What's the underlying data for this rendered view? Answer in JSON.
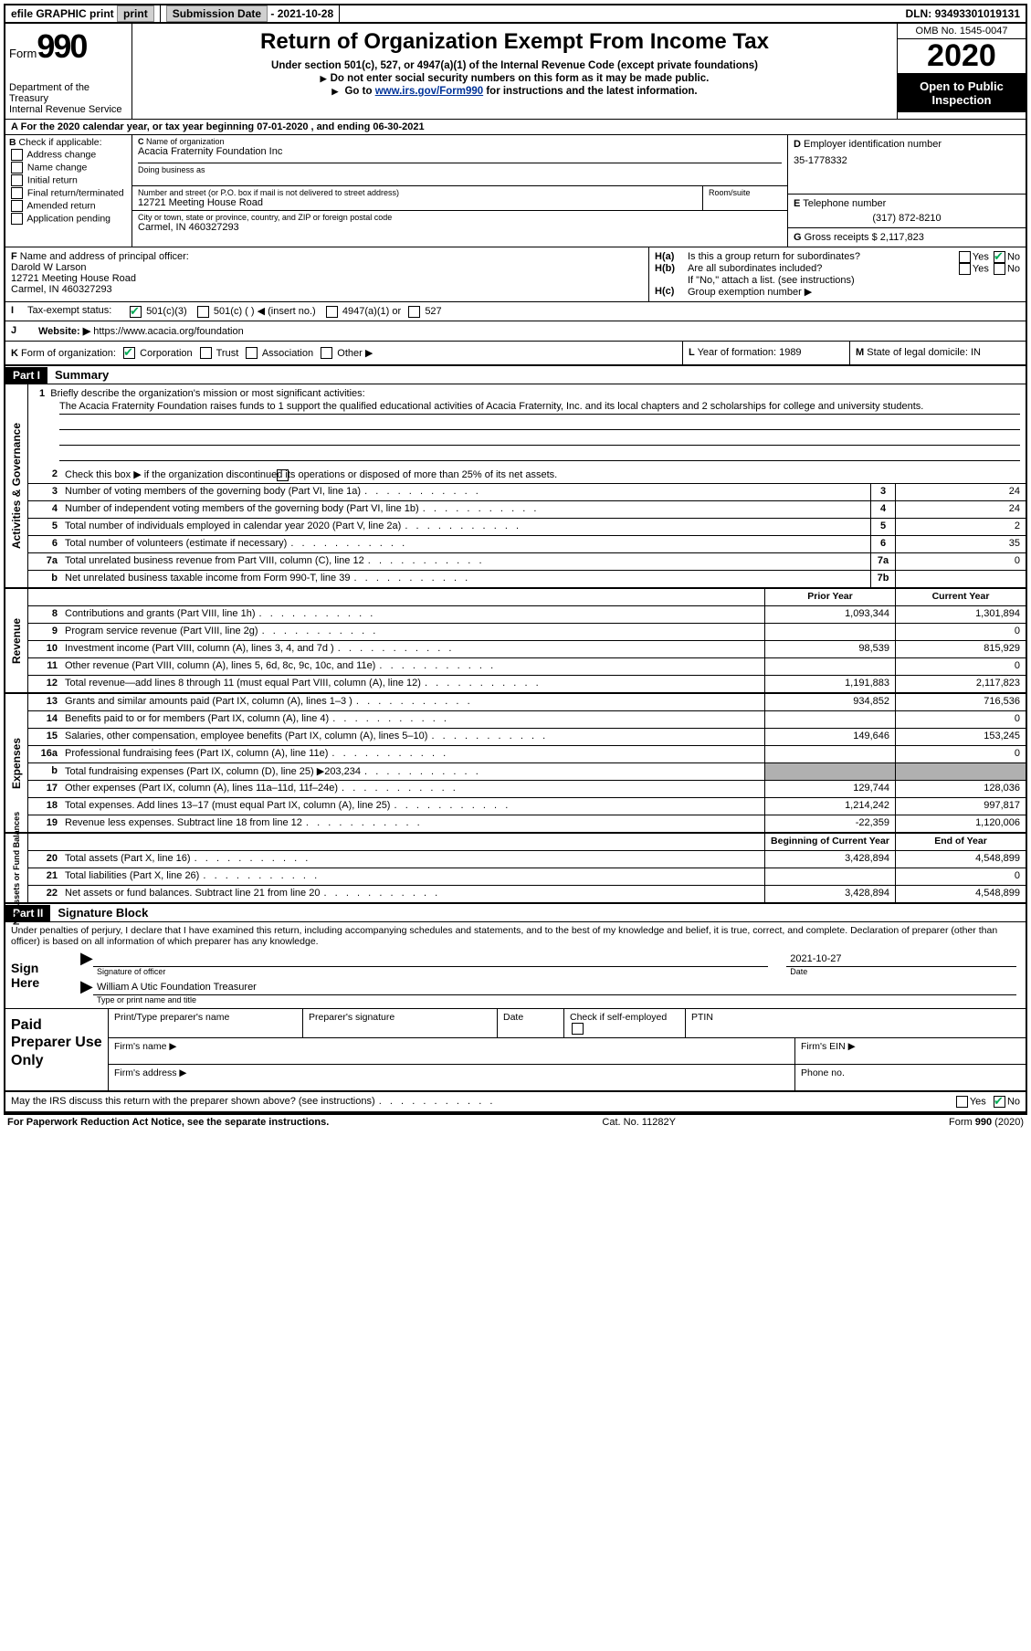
{
  "topbar": {
    "efile": "efile GRAPHIC print",
    "submission_label": "Submission Date",
    "submission_date": "- 2021-10-28",
    "dln_label": "DLN:",
    "dln": "93493301019131"
  },
  "header": {
    "form_word": "Form",
    "form_num": "990",
    "dept1": "Department of the Treasury",
    "dept2": "Internal Revenue Service",
    "title": "Return of Organization Exempt From Income Tax",
    "subtitle": "Under section 501(c), 527, or 4947(a)(1) of the Internal Revenue Code (except private foundations)",
    "note1": "Do not enter social security numbers on this form as it may be made public.",
    "note2_pre": "Go to ",
    "note2_link": "www.irs.gov/Form990",
    "note2_post": " for instructions and the latest information.",
    "omb": "OMB No. 1545-0047",
    "year": "2020",
    "open": "Open to Public Inspection"
  },
  "lineA": "For the 2020 calendar year, or tax year beginning 07-01-2020    , and ending 06-30-2021",
  "boxB": {
    "label": "Check if applicable:",
    "opts": [
      "Address change",
      "Name change",
      "Initial return",
      "Final return/terminated",
      "Amended return",
      "Application pending"
    ]
  },
  "boxC": {
    "label_name": "Name of organization",
    "name": "Acacia Fraternity Foundation Inc",
    "dba_label": "Doing business as",
    "addr_label": "Number and street (or P.O. box if mail is not delivered to street address)",
    "room_label": "Room/suite",
    "addr": "12721 Meeting House Road",
    "city_label": "City or town, state or province, country, and ZIP or foreign postal code",
    "city": "Carmel, IN  460327293"
  },
  "boxD": {
    "label": "Employer identification number",
    "ein": "35-1778332"
  },
  "boxE": {
    "label": "Telephone number",
    "phone": "(317) 872-8210"
  },
  "boxG": {
    "label": "Gross receipts $",
    "val": "2,117,823"
  },
  "boxF": {
    "label": "Name and address of principal officer:",
    "name": "Darold W Larson",
    "addr1": "12721 Meeting House Road",
    "addr2": "Carmel, IN  460327293"
  },
  "boxH": {
    "a_label": "Is this a group return for subordinates?",
    "b_label": "Are all subordinates included?",
    "b_note": "If \"No,\" attach a list. (see instructions)",
    "c_label": "Group exemption number ▶",
    "yes": "Yes",
    "no": "No"
  },
  "rowI": {
    "label": "Tax-exempt status:",
    "opt1": "501(c)(3)",
    "opt2": "501(c) (  ) ◀ (insert no.)",
    "opt3": "4947(a)(1) or",
    "opt4": "527"
  },
  "rowJ": {
    "label": "Website: ▶",
    "url": "https://www.acacia.org/foundation"
  },
  "rowK": {
    "label": "Form of organization:",
    "opts": [
      "Corporation",
      "Trust",
      "Association",
      "Other ▶"
    ],
    "L_label": "Year of formation:",
    "L_val": "1989",
    "M_label": "State of legal domicile:",
    "M_val": "IN"
  },
  "part1": {
    "tag": "Part I",
    "title": "Summary",
    "q1_label": "Briefly describe the organization's mission or most significant activities:",
    "mission": "The Acacia Fraternity Foundation raises funds to 1 support the qualified educational activities of Acacia Fraternity, Inc. and its local chapters and 2 scholarships for college and university students.",
    "q2": "Check this box ▶       if the organization discontinued its operations or disposed of more than 25% of its net assets.",
    "lines_gov": [
      {
        "n": "3",
        "t": "Number of voting members of the governing body (Part VI, line 1a)",
        "box": "3",
        "v": "24"
      },
      {
        "n": "4",
        "t": "Number of independent voting members of the governing body (Part VI, line 1b)",
        "box": "4",
        "v": "24"
      },
      {
        "n": "5",
        "t": "Total number of individuals employed in calendar year 2020 (Part V, line 2a)",
        "box": "5",
        "v": "2"
      },
      {
        "n": "6",
        "t": "Total number of volunteers (estimate if necessary)",
        "box": "6",
        "v": "35"
      },
      {
        "n": "7a",
        "t": "Total unrelated business revenue from Part VIII, column (C), line 12",
        "box": "7a",
        "v": "0"
      },
      {
        "n": "b",
        "t": "Net unrelated business taxable income from Form 990-T, line 39",
        "box": "7b",
        "v": ""
      }
    ],
    "hdr_prior": "Prior Year",
    "hdr_curr": "Current Year",
    "lines_rev": [
      {
        "n": "8",
        "t": "Contributions and grants (Part VIII, line 1h)",
        "p": "1,093,344",
        "c": "1,301,894"
      },
      {
        "n": "9",
        "t": "Program service revenue (Part VIII, line 2g)",
        "p": "",
        "c": "0"
      },
      {
        "n": "10",
        "t": "Investment income (Part VIII, column (A), lines 3, 4, and 7d )",
        "p": "98,539",
        "c": "815,929"
      },
      {
        "n": "11",
        "t": "Other revenue (Part VIII, column (A), lines 5, 6d, 8c, 9c, 10c, and 11e)",
        "p": "",
        "c": "0"
      },
      {
        "n": "12",
        "t": "Total revenue—add lines 8 through 11 (must equal Part VIII, column (A), line 12)",
        "p": "1,191,883",
        "c": "2,117,823"
      }
    ],
    "lines_exp": [
      {
        "n": "13",
        "t": "Grants and similar amounts paid (Part IX, column (A), lines 1–3 )",
        "p": "934,852",
        "c": "716,536"
      },
      {
        "n": "14",
        "t": "Benefits paid to or for members (Part IX, column (A), line 4)",
        "p": "",
        "c": "0"
      },
      {
        "n": "15",
        "t": "Salaries, other compensation, employee benefits (Part IX, column (A), lines 5–10)",
        "p": "149,646",
        "c": "153,245"
      },
      {
        "n": "16a",
        "t": "Professional fundraising fees (Part IX, column (A), line 11e)",
        "p": "",
        "c": "0"
      },
      {
        "n": "b",
        "t": "Total fundraising expenses (Part IX, column (D), line 25) ▶203,234",
        "p": "shade",
        "c": "shade"
      },
      {
        "n": "17",
        "t": "Other expenses (Part IX, column (A), lines 11a–11d, 11f–24e)",
        "p": "129,744",
        "c": "128,036"
      },
      {
        "n": "18",
        "t": "Total expenses. Add lines 13–17 (must equal Part IX, column (A), line 25)",
        "p": "1,214,242",
        "c": "997,817"
      },
      {
        "n": "19",
        "t": "Revenue less expenses. Subtract line 18 from line 12",
        "p": "-22,359",
        "c": "1,120,006"
      }
    ],
    "hdr_beg": "Beginning of Current Year",
    "hdr_end": "End of Year",
    "lines_net": [
      {
        "n": "20",
        "t": "Total assets (Part X, line 16)",
        "p": "3,428,894",
        "c": "4,548,899"
      },
      {
        "n": "21",
        "t": "Total liabilities (Part X, line 26)",
        "p": "",
        "c": "0"
      },
      {
        "n": "22",
        "t": "Net assets or fund balances. Subtract line 21 from line 20",
        "p": "3,428,894",
        "c": "4,548,899"
      }
    ]
  },
  "vlabels": {
    "gov": "Activities & Governance",
    "rev": "Revenue",
    "exp": "Expenses",
    "net": "Net Assets or Fund Balances"
  },
  "part2": {
    "tag": "Part II",
    "title": "Signature Block",
    "decl": "Under penalties of perjury, I declare that I have examined this return, including accompanying schedules and statements, and to the best of my knowledge and belief, it is true, correct, and complete. Declaration of preparer (other than officer) is based on all information of which preparer has any knowledge.",
    "sign_here": "Sign Here",
    "sig_officer": "Signature of officer",
    "date_label": "Date",
    "date_val": "2021-10-27",
    "officer_name": "William A Utic Foundation Treasurer",
    "officer_caption": "Type or print name and title",
    "paid": "Paid Preparer Use Only",
    "p_name": "Print/Type preparer's name",
    "p_sig": "Preparer's signature",
    "p_date": "Date",
    "p_check": "Check       if self-employed",
    "p_ptin": "PTIN",
    "p_firm": "Firm's name   ▶",
    "p_ein": "Firm's EIN ▶",
    "p_addr": "Firm's address ▶",
    "p_phone": "Phone no.",
    "discuss": "May the IRS discuss this return with the preparer shown above? (see instructions)"
  },
  "footer": {
    "left": "For Paperwork Reduction Act Notice, see the separate instructions.",
    "mid": "Cat. No. 11282Y",
    "right": "Form 990 (2020)"
  }
}
